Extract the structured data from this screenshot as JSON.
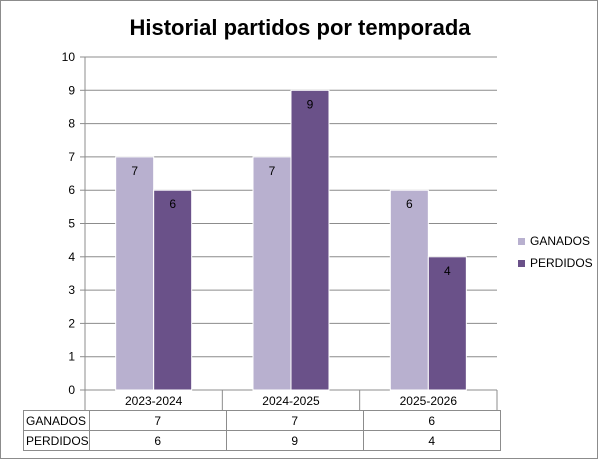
{
  "chart_data": {
    "type": "bar",
    "title": "Historial partidos por temporada",
    "categories": [
      "2023-2024",
      "2024-2025",
      "2025-2026"
    ],
    "series": [
      {
        "name": "GANADOS",
        "values": [
          7,
          7,
          6
        ],
        "color": "#b8b0cf"
      },
      {
        "name": "PERDIDOS",
        "values": [
          6,
          9,
          4
        ],
        "color": "#6a5189"
      }
    ],
    "y_ticks": [
      "0",
      "1",
      "2",
      "3",
      "4",
      "5",
      "6",
      "7",
      "8",
      "9",
      "10"
    ],
    "ylim": [
      0,
      10
    ],
    "grid": true,
    "legend_position": "right",
    "data_table": true
  }
}
